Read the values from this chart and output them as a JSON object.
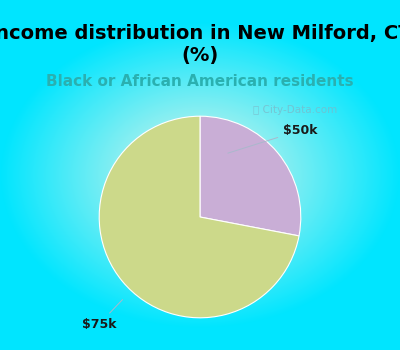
{
  "title": "Income distribution in New Milford, CT\n(%)",
  "subtitle": "Black or African American residents",
  "slices": [
    {
      "label": "$50k",
      "value": 28,
      "color": "#c9aed6"
    },
    {
      "label": "$75k",
      "value": 72,
      "color": "#ccd98a"
    }
  ],
  "title_fontsize": 14,
  "subtitle_fontsize": 11,
  "subtitle_color": "#2ab0b0",
  "label_fontsize": 9,
  "title_color": "#000000",
  "bg_color": "#00e5ff",
  "start_angle": 90,
  "watermark": "City-Data.com"
}
